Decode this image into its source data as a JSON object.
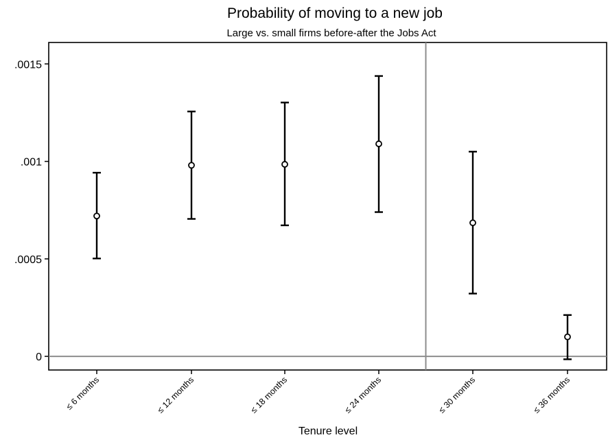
{
  "chart_data": {
    "type": "scatter",
    "title": "Probability of moving to a new job",
    "subtitle": "Large vs. small firms before-after the Jobs Act",
    "xlabel": "Tenure level",
    "ylabel": "",
    "categories": [
      "≤ 6 months",
      "≤ 12 months",
      "≤ 18 months",
      "≤ 24 months",
      "≤ 30 months",
      "≤ 36 months"
    ],
    "series": [
      {
        "point_estimate": [
          0.00072,
          0.00098,
          0.000985,
          0.00109,
          0.000685,
          0.0001
        ],
        "ci_lower": [
          0.000502,
          0.000705,
          0.000672,
          0.00074,
          0.000322,
          -1.5e-05
        ],
        "ci_upper": [
          0.000942,
          0.001256,
          0.001302,
          0.001438,
          0.00105,
          0.000212
        ]
      }
    ],
    "yticks": [
      0,
      0.0005,
      0.001,
      0.0015
    ],
    "ytick_labels": [
      "0",
      ".0005",
      ".001",
      ".0015"
    ],
    "ylim": [
      -7e-05,
      0.00161
    ],
    "reference_lines": {
      "horizontal_at_y": 0,
      "vertical_between_categories": [
        4,
        5
      ]
    },
    "grid": false,
    "legend": "none",
    "colors": {
      "marker": "#000000",
      "reference_line": "#8c8c8c"
    }
  }
}
